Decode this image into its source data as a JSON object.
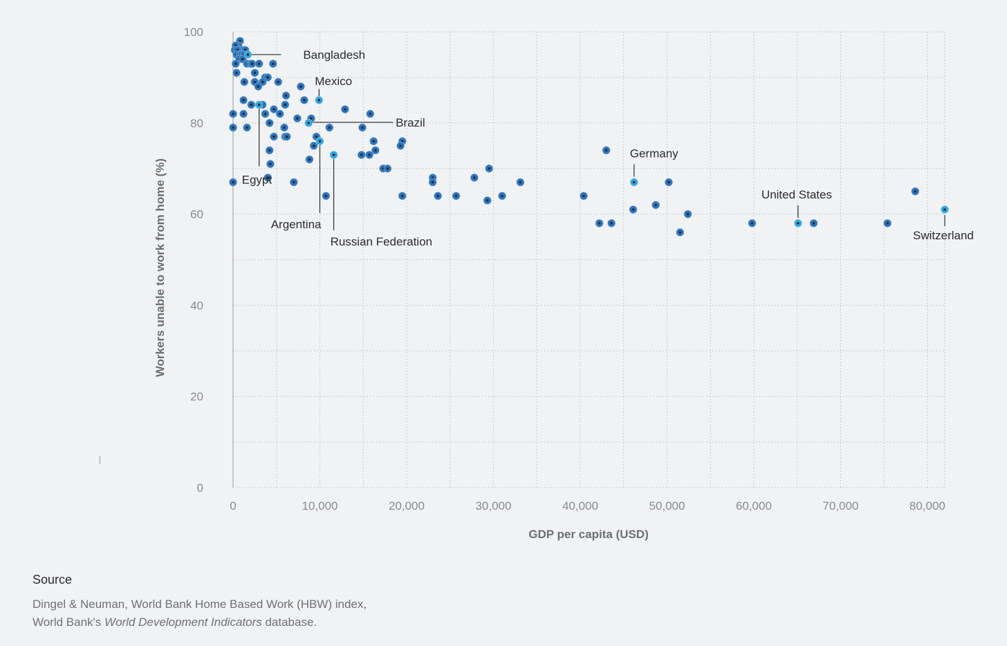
{
  "chart_data": {
    "type": "scatter",
    "xlabel": "GDP per capita (USD)",
    "ylabel": "Workers unable to work from home (%)",
    "xlim": [
      0,
      82000
    ],
    "ylim": [
      0,
      100
    ],
    "x_ticks": [
      0,
      10000,
      20000,
      30000,
      40000,
      50000,
      60000,
      70000,
      80000
    ],
    "x_tick_labels": [
      "0",
      "10,000",
      "20,000",
      "30,000",
      "40,000",
      "50,000",
      "60,000",
      "70,000",
      "80,000"
    ],
    "y_ticks": [
      0,
      20,
      40,
      60,
      80,
      100
    ],
    "y_tick_labels": [
      "0",
      "20",
      "40",
      "60",
      "80",
      "100"
    ],
    "grid": true,
    "colors": {
      "point": "#2f74b8",
      "highlight": "#34a8dc",
      "center": "#1a2b45"
    },
    "points": [
      {
        "x": 800,
        "y": 98
      },
      {
        "x": 600,
        "y": 97
      },
      {
        "x": 300,
        "y": 97
      },
      {
        "x": 1100,
        "y": 96
      },
      {
        "x": 200,
        "y": 96
      },
      {
        "x": 500,
        "y": 96
      },
      {
        "x": 1400,
        "y": 96
      },
      {
        "x": 400,
        "y": 95
      },
      {
        "x": 800,
        "y": 95
      },
      {
        "x": 1000,
        "y": 95
      },
      {
        "x": 1300,
        "y": 95
      },
      {
        "x": 700,
        "y": 94
      },
      {
        "x": 1100,
        "y": 94
      },
      {
        "x": 300,
        "y": 93
      },
      {
        "x": 1600,
        "y": 93
      },
      {
        "x": 2000,
        "y": 93
      },
      {
        "x": 2200,
        "y": 93
      },
      {
        "x": 3000,
        "y": 93
      },
      {
        "x": 4600,
        "y": 93
      },
      {
        "x": 400,
        "y": 91
      },
      {
        "x": 2500,
        "y": 91
      },
      {
        "x": 3700,
        "y": 90
      },
      {
        "x": 4000,
        "y": 90
      },
      {
        "x": 1300,
        "y": 89
      },
      {
        "x": 2500,
        "y": 89
      },
      {
        "x": 3400,
        "y": 89
      },
      {
        "x": 5200,
        "y": 89
      },
      {
        "x": 2900,
        "y": 88
      },
      {
        "x": 7800,
        "y": 88
      },
      {
        "x": 6100,
        "y": 86
      },
      {
        "x": 1200,
        "y": 85
      },
      {
        "x": 8200,
        "y": 85
      },
      {
        "x": 2100,
        "y": 84
      },
      {
        "x": 3000,
        "y": 84
      },
      {
        "x": 3400,
        "y": 84
      },
      {
        "x": 6000,
        "y": 84
      },
      {
        "x": 4700,
        "y": 83
      },
      {
        "x": 12900,
        "y": 83
      },
      {
        "x": 0,
        "y": 82
      },
      {
        "x": 1200,
        "y": 82
      },
      {
        "x": 3700,
        "y": 82
      },
      {
        "x": 5400,
        "y": 82
      },
      {
        "x": 15800,
        "y": 82
      },
      {
        "x": 7400,
        "y": 81
      },
      {
        "x": 9000,
        "y": 81
      },
      {
        "x": 4200,
        "y": 80
      },
      {
        "x": 0,
        "y": 79
      },
      {
        "x": 1600,
        "y": 79
      },
      {
        "x": 5900,
        "y": 79
      },
      {
        "x": 11100,
        "y": 79
      },
      {
        "x": 14900,
        "y": 79
      },
      {
        "x": 4700,
        "y": 77
      },
      {
        "x": 6000,
        "y": 77
      },
      {
        "x": 6200,
        "y": 77
      },
      {
        "x": 9600,
        "y": 77
      },
      {
        "x": 16200,
        "y": 76
      },
      {
        "x": 19500,
        "y": 76
      },
      {
        "x": 9300,
        "y": 75
      },
      {
        "x": 19300,
        "y": 75
      },
      {
        "x": 4200,
        "y": 74
      },
      {
        "x": 16400,
        "y": 74
      },
      {
        "x": 43000,
        "y": 74
      },
      {
        "x": 14800,
        "y": 73
      },
      {
        "x": 15700,
        "y": 73
      },
      {
        "x": 8800,
        "y": 72
      },
      {
        "x": 4300,
        "y": 71
      },
      {
        "x": 17300,
        "y": 70
      },
      {
        "x": 17800,
        "y": 70
      },
      {
        "x": 29500,
        "y": 70
      },
      {
        "x": 4000,
        "y": 68
      },
      {
        "x": 23000,
        "y": 68
      },
      {
        "x": 27800,
        "y": 68
      },
      {
        "x": 0,
        "y": 67
      },
      {
        "x": 7000,
        "y": 67
      },
      {
        "x": 23000,
        "y": 67
      },
      {
        "x": 33100,
        "y": 67
      },
      {
        "x": 50200,
        "y": 67
      },
      {
        "x": 78600,
        "y": 65
      },
      {
        "x": 10700,
        "y": 64
      },
      {
        "x": 19500,
        "y": 64
      },
      {
        "x": 23600,
        "y": 64
      },
      {
        "x": 25700,
        "y": 64
      },
      {
        "x": 31000,
        "y": 64
      },
      {
        "x": 40400,
        "y": 64
      },
      {
        "x": 29300,
        "y": 63
      },
      {
        "x": 48700,
        "y": 62
      },
      {
        "x": 46100,
        "y": 61
      },
      {
        "x": 52400,
        "y": 60
      },
      {
        "x": 42200,
        "y": 58
      },
      {
        "x": 43600,
        "y": 58
      },
      {
        "x": 59800,
        "y": 58
      },
      {
        "x": 66900,
        "y": 58
      },
      {
        "x": 75400,
        "y": 58
      },
      {
        "x": 51500,
        "y": 56
      }
    ],
    "highlighted": [
      {
        "label": "Bangladesh",
        "x": 1700,
        "y": 95
      },
      {
        "label": "Mexico",
        "x": 9900,
        "y": 85
      },
      {
        "label": "Brazil",
        "x": 8700,
        "y": 80
      },
      {
        "label": "Egypt",
        "x": 3000,
        "y": 84
      },
      {
        "label": "Argentina",
        "x": 10000,
        "y": 76
      },
      {
        "label": "Russian Federation",
        "x": 11600,
        "y": 73
      },
      {
        "label": "Germany",
        "x": 46200,
        "y": 67
      },
      {
        "label": "United States",
        "x": 65100,
        "y": 58
      },
      {
        "label": "Switzerland",
        "x": 82000,
        "y": 61
      }
    ]
  },
  "source": {
    "title": "Source",
    "line1": "Dingel & Neuman, World Bank Home Based Work (HBW) index,",
    "line2_prefix": "World Bank's ",
    "line2_italic": "World Development Indicators",
    "line2_suffix": " database."
  }
}
